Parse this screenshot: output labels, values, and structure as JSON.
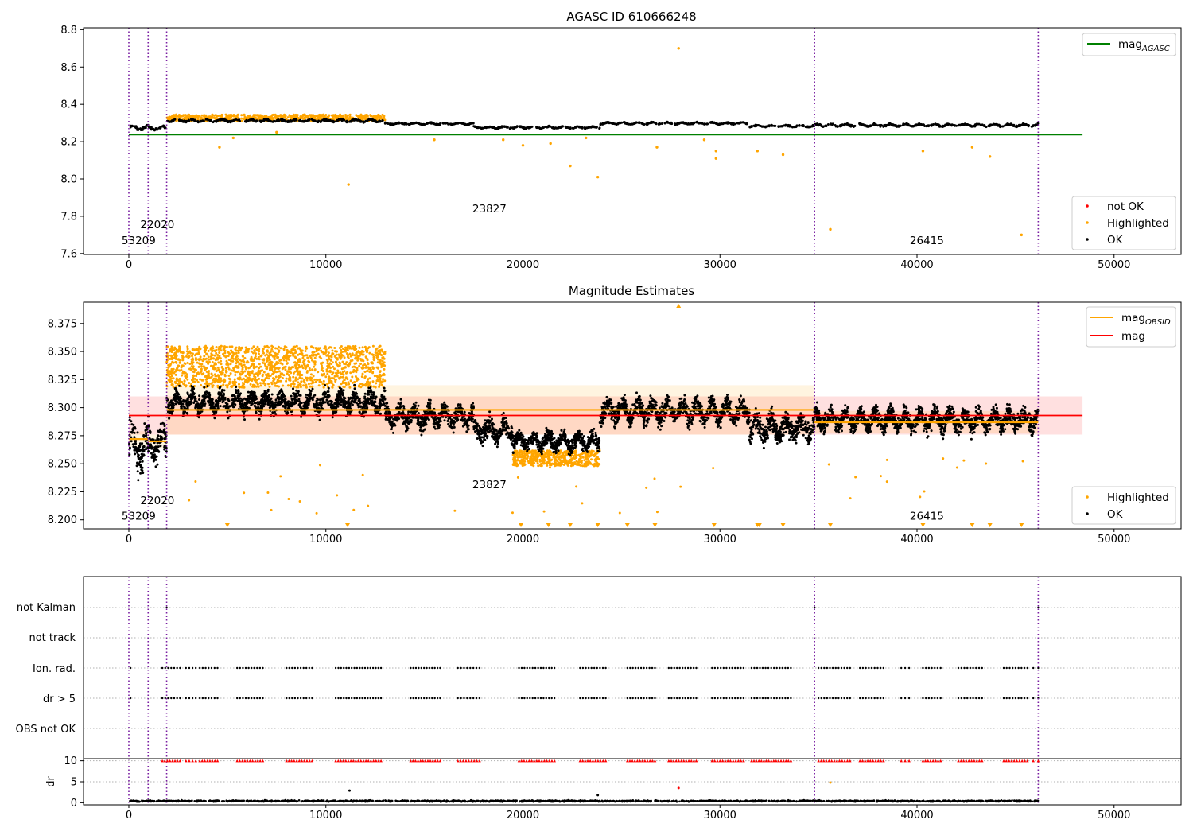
{
  "chart_data": [
    {
      "type": "scatter",
      "title": "AGASC ID 610666248",
      "xlim": [
        -2300,
        53400
      ],
      "ylim": [
        7.595,
        8.81
      ],
      "xticks": [
        "0",
        "10000",
        "20000",
        "30000",
        "40000",
        "50000"
      ],
      "yticks": [
        "7.6",
        "7.8",
        "8.0",
        "8.2",
        "8.4",
        "8.6",
        "8.8"
      ],
      "vlines_x": [
        0,
        980,
        1920,
        34800,
        46150
      ],
      "hline": {
        "name": "mag",
        "sub": "AGASC",
        "y": 8.237,
        "x": [
          0,
          48400
        ],
        "color": "#008000"
      },
      "annotations": [
        {
          "text": "53209",
          "x": 500,
          "y": 7.65
        },
        {
          "text": "22020",
          "x": 1450,
          "y": 7.735
        },
        {
          "text": "23827",
          "x": 18300,
          "y": 7.82
        },
        {
          "text": "26415",
          "x": 40500,
          "y": 7.65
        }
      ],
      "legend_top": {
        "position": "upper right",
        "entries": [
          {
            "label": "mag",
            "sub": "AGASC",
            "color": "#008000"
          }
        ]
      },
      "legend_bottom": {
        "position": "lower right",
        "entries": [
          {
            "label": "not OK",
            "color": "#ff0000"
          },
          {
            "label": "Highlighted",
            "color": "#ffa500"
          },
          {
            "label": "OK",
            "color": "#000000"
          }
        ]
      },
      "ok_segments": [
        {
          "x0": 0,
          "x1": 980,
          "y": 8.275,
          "spread": 0.018
        },
        {
          "x0": 980,
          "x1": 1920,
          "y": 8.272,
          "spread": 0.015
        },
        {
          "x0": 1920,
          "x1": 13000,
          "y": 8.312,
          "spread": 0.011
        },
        {
          "x0": 13000,
          "x1": 17500,
          "y": 8.296,
          "spread": 0.008
        },
        {
          "x0": 17500,
          "x1": 23900,
          "y": 8.276,
          "spread": 0.009
        },
        {
          "x0": 23900,
          "x1": 31500,
          "y": 8.298,
          "spread": 0.009
        },
        {
          "x0": 31500,
          "x1": 34800,
          "y": 8.283,
          "spread": 0.008
        },
        {
          "x0": 34800,
          "x1": 46150,
          "y": 8.288,
          "spread": 0.011
        }
      ],
      "highlight_band": {
        "x0": 1920,
        "x1": 13000,
        "y_top": 8.345,
        "y_bottom": 8.31
      },
      "highlighted_outliers": [
        {
          "x": 4600,
          "y": 8.17
        },
        {
          "x": 5300,
          "y": 8.22
        },
        {
          "x": 7500,
          "y": 8.25
        },
        {
          "x": 11150,
          "y": 7.97
        },
        {
          "x": 15500,
          "y": 8.21
        },
        {
          "x": 19000,
          "y": 8.21
        },
        {
          "x": 20000,
          "y": 8.18
        },
        {
          "x": 21400,
          "y": 8.19
        },
        {
          "x": 22400,
          "y": 8.07
        },
        {
          "x": 23200,
          "y": 8.22
        },
        {
          "x": 23800,
          "y": 8.01
        },
        {
          "x": 26800,
          "y": 8.17
        },
        {
          "x": 27900,
          "y": 8.7
        },
        {
          "x": 29200,
          "y": 8.21
        },
        {
          "x": 29800,
          "y": 8.15
        },
        {
          "x": 29800,
          "y": 8.11
        },
        {
          "x": 31900,
          "y": 8.15
        },
        {
          "x": 33200,
          "y": 8.13
        },
        {
          "x": 35600,
          "y": 7.73
        },
        {
          "x": 40300,
          "y": 8.15
        },
        {
          "x": 42800,
          "y": 8.17
        },
        {
          "x": 43700,
          "y": 8.12
        },
        {
          "x": 45300,
          "y": 7.7
        }
      ]
    },
    {
      "type": "scatter",
      "title": "Magnitude Estimates",
      "xlim": [
        -2300,
        53400
      ],
      "ylim": [
        8.192,
        8.394
      ],
      "xticks": [
        "0",
        "10000",
        "20000",
        "30000",
        "40000",
        "50000"
      ],
      "yticks": [
        "8.200",
        "8.225",
        "8.250",
        "8.275",
        "8.300",
        "8.325",
        "8.350",
        "8.375"
      ],
      "vlines_x": [
        0,
        980,
        1920,
        34800,
        46150
      ],
      "mag_line": {
        "name": "mag",
        "y": 8.293,
        "x": [
          0,
          48400
        ],
        "color": "#ff0000",
        "band": [
          8.276,
          8.31
        ]
      },
      "obsid_mags": [
        {
          "x0": 0,
          "x1": 980,
          "y": 8.272,
          "band": [
            8.265,
            8.279
          ]
        },
        {
          "x0": 980,
          "x1": 1920,
          "y": 8.27,
          "band": [
            8.264,
            8.276
          ]
        },
        {
          "x0": 1920,
          "x1": 34800,
          "y": 8.298,
          "band": [
            8.276,
            8.32
          ]
        },
        {
          "x0": 34800,
          "x1": 46150,
          "y": 8.287,
          "band": [
            8.277,
            8.297
          ]
        }
      ],
      "ok_segments": [
        {
          "x0": 0,
          "x1": 980,
          "y": 8.265,
          "spread": 0.025
        },
        {
          "x0": 980,
          "x1": 1920,
          "y": 8.268,
          "spread": 0.018
        },
        {
          "x0": 1920,
          "x1": 13000,
          "y": 8.305,
          "spread": 0.012
        },
        {
          "x0": 13000,
          "x1": 17500,
          "y": 8.292,
          "spread": 0.012
        },
        {
          "x0": 17500,
          "x1": 19500,
          "y": 8.28,
          "spread": 0.012
        },
        {
          "x0": 19500,
          "x1": 23900,
          "y": 8.27,
          "spread": 0.01
        },
        {
          "x0": 23900,
          "x1": 31500,
          "y": 8.297,
          "spread": 0.013
        },
        {
          "x0": 31500,
          "x1": 34800,
          "y": 8.282,
          "spread": 0.014
        },
        {
          "x0": 34800,
          "x1": 46150,
          "y": 8.289,
          "spread": 0.012
        }
      ],
      "highlight_bands": [
        {
          "x0": 1920,
          "x1": 13000,
          "y_top": 8.355,
          "y_bottom": 8.318
        },
        {
          "x0": 19500,
          "x1": 23900,
          "y_top": 8.262,
          "y_bottom": 8.248
        }
      ],
      "off_scale_markers_x": [
        5000,
        11100,
        19900,
        21300,
        22400,
        23800,
        25300,
        26700,
        29700,
        31900,
        32000,
        33200,
        35600,
        40300,
        42800,
        43700,
        45300
      ],
      "off_scale_top_x": [
        27900
      ],
      "annotations": [
        {
          "text": "53209",
          "x": 500,
          "y": 8.2
        },
        {
          "text": "22020",
          "x": 1450,
          "y": 8.214
        },
        {
          "text": "23827",
          "x": 18300,
          "y": 8.228
        },
        {
          "text": "26415",
          "x": 40500,
          "y": 8.2
        }
      ],
      "legend_top": {
        "position": "upper right",
        "entries": [
          {
            "label": "mag",
            "sub": "OBSID",
            "color": "#ffa500"
          },
          {
            "label": "mag",
            "color": "#ff0000"
          }
        ]
      },
      "legend_bottom": {
        "position": "lower right",
        "entries": [
          {
            "label": "Highlighted",
            "color": "#ffa500"
          },
          {
            "label": "OK",
            "color": "#000000"
          }
        ]
      }
    },
    {
      "type": "scatter",
      "title": "",
      "xlim": [
        -2300,
        53400
      ],
      "categories": [
        "not Kalman",
        "not track",
        "Ion. rad.",
        "dr > 5",
        "OBS not OK"
      ],
      "vlines_x": [
        0,
        980,
        1920,
        34800,
        46150
      ],
      "flag_x_ranges": [
        [
          1700,
          2600
        ],
        [
          2900,
          3400
        ],
        [
          3600,
          4500
        ],
        [
          5500,
          6800
        ],
        [
          8000,
          9300
        ],
        [
          10500,
          12800
        ],
        [
          14300,
          15800
        ],
        [
          16700,
          17800
        ],
        [
          19800,
          21600
        ],
        [
          22900,
          24200
        ],
        [
          25300,
          26700
        ],
        [
          27400,
          28800
        ],
        [
          29600,
          31200
        ],
        [
          31600,
          33600
        ],
        [
          35000,
          36600
        ],
        [
          37100,
          38300
        ],
        [
          39200,
          39600
        ],
        [
          40300,
          41200
        ],
        [
          42100,
          43300
        ],
        [
          44400,
          45600
        ],
        [
          45900,
          46150
        ]
      ],
      "kalman_x": [
        1920,
        34800,
        46150
      ]
    },
    {
      "type": "scatter",
      "title": "",
      "xlim": [
        -2300,
        53400
      ],
      "ylim": [
        -0.5,
        10.5
      ],
      "ylabel": "dr",
      "yticks": [
        "0",
        "5",
        "10"
      ],
      "xticks": [
        "0",
        "10000",
        "20000",
        "30000",
        "40000",
        "50000"
      ],
      "vlines_x": [
        0,
        980,
        1920,
        34800,
        46150
      ],
      "ok_level": 0.4,
      "capped_value": 10,
      "outliers": [
        {
          "x": 11200,
          "y": 2.9,
          "color": "#000000"
        },
        {
          "x": 23800,
          "y": 1.8,
          "color": "#000000"
        },
        {
          "x": 27900,
          "y": 3.5,
          "color": "#ff0000"
        },
        {
          "x": 35600,
          "y": 4.8,
          "color": "#ffa500"
        }
      ]
    }
  ]
}
